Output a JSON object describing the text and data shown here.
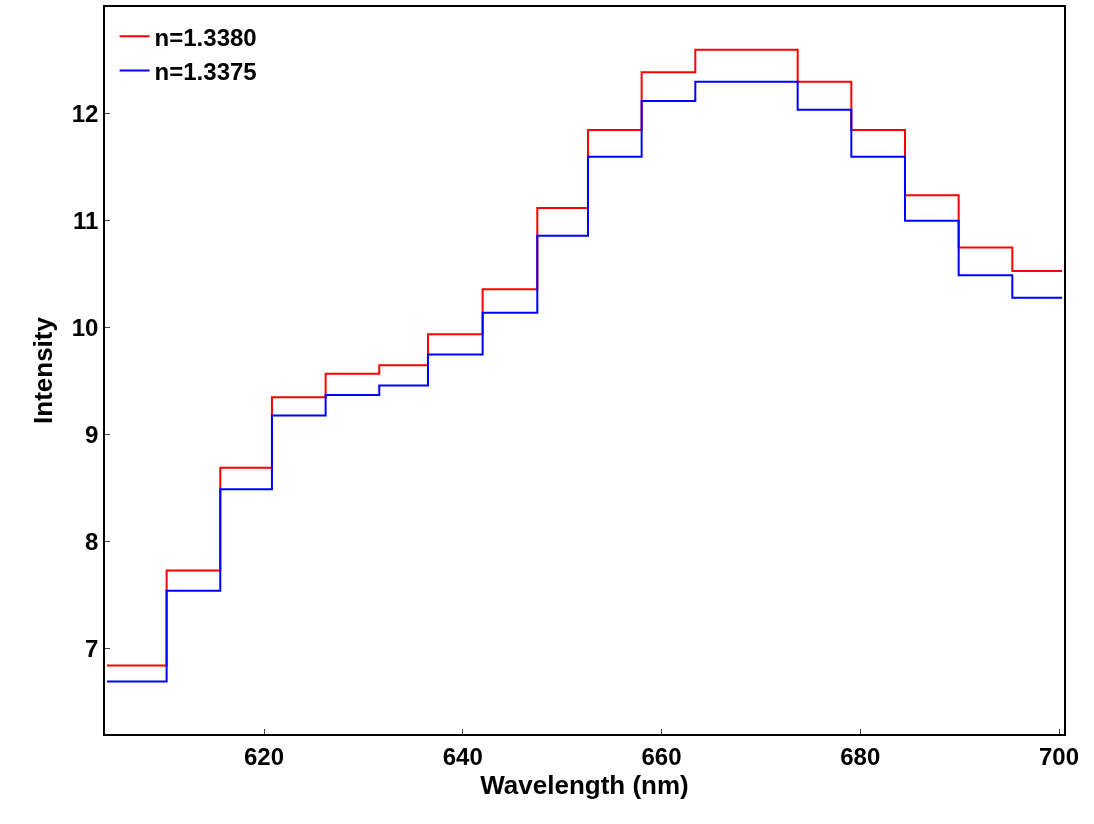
{
  "chart_data": {
    "type": "step",
    "xlabel": "Wavelength (nm)",
    "ylabel": "Intensity",
    "xlim": [
      604,
      700.5
    ],
    "xticks": [
      620,
      640,
      660,
      680,
      700
    ],
    "ylim": [
      6.2,
      13.0
    ],
    "yticks": [
      7,
      8,
      9,
      10,
      11,
      12
    ],
    "x": [
      604.2,
      610.2,
      615.6,
      620.8,
      626.2,
      631.6,
      636.5,
      642.0,
      647.5,
      652.6,
      658.0,
      663.4,
      673.7,
      679.1,
      684.5,
      689.9,
      695.3,
      700.3
    ],
    "series": [
      {
        "name": "n=1.3380",
        "color": "#ff0000",
        "values": [
          6.84,
          7.73,
          8.69,
          9.35,
          9.57,
          9.65,
          9.94,
          10.36,
          11.12,
          11.85,
          12.39,
          12.6,
          12.3,
          11.85,
          11.24,
          10.75,
          10.53,
          10.53
        ]
      },
      {
        "name": "n=1.3375",
        "color": "#0000ff",
        "values": [
          6.69,
          7.54,
          8.49,
          9.18,
          9.37,
          9.46,
          9.75,
          10.14,
          10.86,
          11.6,
          12.12,
          12.3,
          12.04,
          11.6,
          11.0,
          10.49,
          10.28,
          10.28
        ]
      }
    ],
    "legend": "top left"
  }
}
